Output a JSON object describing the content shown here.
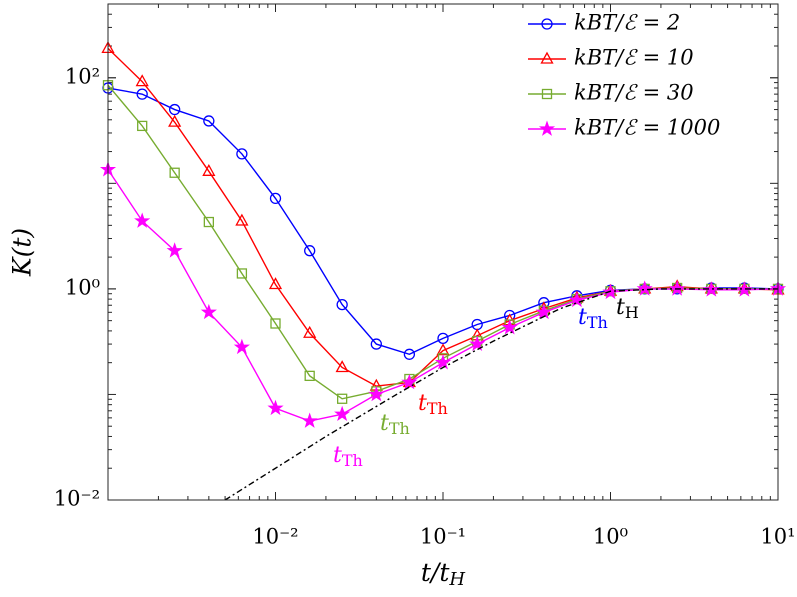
{
  "chart_data": {
    "type": "line",
    "x_label": {
      "main": "t/t",
      "sub": "H"
    },
    "y_label": "K(t)",
    "log_x": true,
    "log_y": true,
    "xlim": [
      0.001,
      10
    ],
    "ylim": [
      0.01,
      500
    ],
    "xticks": [
      {
        "value": 0.01,
        "label": "10⁻²"
      },
      {
        "value": 0.1,
        "label": "10⁻¹"
      },
      {
        "value": 1,
        "label": "10⁰"
      },
      {
        "value": 10,
        "label": "10¹"
      }
    ],
    "yticks": [
      {
        "value": 0.01,
        "label": "10⁻²"
      },
      {
        "value": 1,
        "label": "10⁰"
      },
      {
        "value": 100,
        "label": "10²"
      }
    ],
    "legend": "upper right",
    "series": [
      {
        "name": "kBT/ℰ = 2",
        "color": "#0000ff",
        "marker": "circle",
        "x": [
          0.001,
          0.0016,
          0.0025,
          0.004,
          0.0063,
          0.01,
          0.016,
          0.025,
          0.04,
          0.063,
          0.1,
          0.16,
          0.25,
          0.4,
          0.63,
          1,
          1.6,
          2.5,
          4,
          6.3,
          10
        ],
        "values": [
          80,
          70,
          50,
          39,
          19,
          7.2,
          2.3,
          0.71,
          0.3,
          0.24,
          0.34,
          0.46,
          0.56,
          0.74,
          0.86,
          0.97,
          1.0,
          1.0,
          1.02,
          1.02,
          1.0
        ]
      },
      {
        "name": "kBT/ℰ = 10",
        "color": "#ff0000",
        "marker": "triangle",
        "x": [
          0.001,
          0.0016,
          0.0025,
          0.004,
          0.0063,
          0.01,
          0.016,
          0.025,
          0.04,
          0.063,
          0.1,
          0.16,
          0.25,
          0.4,
          0.63,
          1,
          1.6,
          2.5,
          4,
          6.3,
          10
        ],
        "values": [
          190,
          92,
          38,
          13,
          4.4,
          1.1,
          0.38,
          0.18,
          0.12,
          0.13,
          0.26,
          0.36,
          0.5,
          0.65,
          0.82,
          0.95,
          1.0,
          1.05,
          1.0,
          1.0,
          0.98
        ]
      },
      {
        "name": "kBT/ℰ = 30",
        "color": "#77ac30",
        "marker": "square",
        "x": [
          0.001,
          0.0016,
          0.0025,
          0.004,
          0.0063,
          0.01,
          0.016,
          0.025,
          0.04,
          0.063,
          0.1,
          0.16,
          0.25,
          0.4,
          0.63,
          1,
          1.6,
          2.5,
          4,
          6.3,
          10
        ],
        "values": [
          85,
          35,
          12.6,
          4.3,
          1.4,
          0.47,
          0.15,
          0.091,
          0.107,
          0.14,
          0.22,
          0.32,
          0.46,
          0.62,
          0.8,
          0.95,
          1.0,
          1.02,
          1.0,
          1.0,
          1.0
        ]
      },
      {
        "name": "kBT/ℰ = 1000",
        "color": "#ff00ff",
        "marker": "star",
        "x": [
          0.001,
          0.0016,
          0.0025,
          0.004,
          0.0063,
          0.01,
          0.016,
          0.025,
          0.04,
          0.063,
          0.1,
          0.16,
          0.25,
          0.4,
          0.63,
          1,
          1.6,
          2.5,
          4,
          6.3,
          10
        ],
        "values": [
          13.5,
          4.4,
          2.3,
          0.6,
          0.28,
          0.074,
          0.056,
          0.065,
          0.1,
          0.13,
          0.2,
          0.3,
          0.43,
          0.6,
          0.78,
          0.93,
          1.0,
          1.0,
          0.98,
          0.98,
          1.0
        ]
      },
      {
        "color": "#000000",
        "marker": "none",
        "dash": true,
        "x": [
          0.005,
          0.01,
          0.02,
          0.05,
          0.1,
          0.2,
          0.5,
          1,
          2,
          5,
          10
        ],
        "values": [
          0.01,
          0.02,
          0.04,
          0.095,
          0.18,
          0.32,
          0.65,
          0.95,
          1,
          1,
          1
        ]
      }
    ],
    "annotations": [
      {
        "main": "t",
        "sub": "Th",
        "color": "#0000ff"
      },
      {
        "main": "t",
        "sub": "H",
        "color": "#000000"
      },
      {
        "main": "t",
        "sub": "Th",
        "color": "#ff0000"
      },
      {
        "main": "t",
        "sub": "Th",
        "color": "#77ac30"
      },
      {
        "main": "t",
        "sub": "Th",
        "color": "#ff00ff"
      }
    ]
  }
}
